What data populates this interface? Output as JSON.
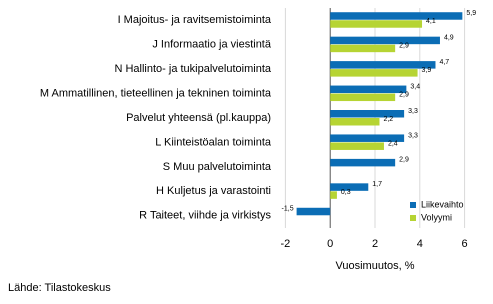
{
  "chart_data": {
    "type": "hbar",
    "categories": [
      "I Majoitus- ja ravitsemistoiminta",
      "J Informaatio ja viestintä",
      "N Hallinto- ja tukipalvelutoiminta",
      "M Ammatillinen, tieteellinen ja tekninen toiminta",
      "Palvelut yhteensä (pl.kauppa)",
      "L Kiinteistöalan toiminta",
      "S Muu palvelutoiminta",
      "H Kuljetus ja varastointi",
      "R Taiteet, viihde ja virkistys"
    ],
    "series": [
      {
        "name": "Liikevaihto",
        "color": "#0b6db5",
        "values": [
          5.9,
          4.9,
          4.7,
          3.4,
          3.3,
          3.3,
          2.9,
          1.7,
          -1.5
        ],
        "value_labels": [
          "5,9",
          "4,9",
          "4,7",
          "3,4",
          "3,3",
          "3,3",
          "2,9",
          "1,7",
          "-1,5"
        ]
      },
      {
        "name": "Volyymi",
        "color": "#b6d433",
        "values": [
          4.1,
          2.9,
          3.9,
          2.9,
          2.2,
          2.4,
          null,
          0.3,
          null
        ],
        "value_labels": [
          "4,1",
          "2,9",
          "3,9",
          "2,9",
          "2,2",
          "2,4",
          null,
          "0,3",
          null
        ]
      }
    ],
    "xlabel": "Vuosimuutos, %",
    "xlim": [
      -3,
      7
    ],
    "xticks": [
      -2,
      0,
      2,
      4,
      6
    ],
    "grid": true,
    "legend": "lower right",
    "source": "Lähde: Tilastokeskus"
  }
}
